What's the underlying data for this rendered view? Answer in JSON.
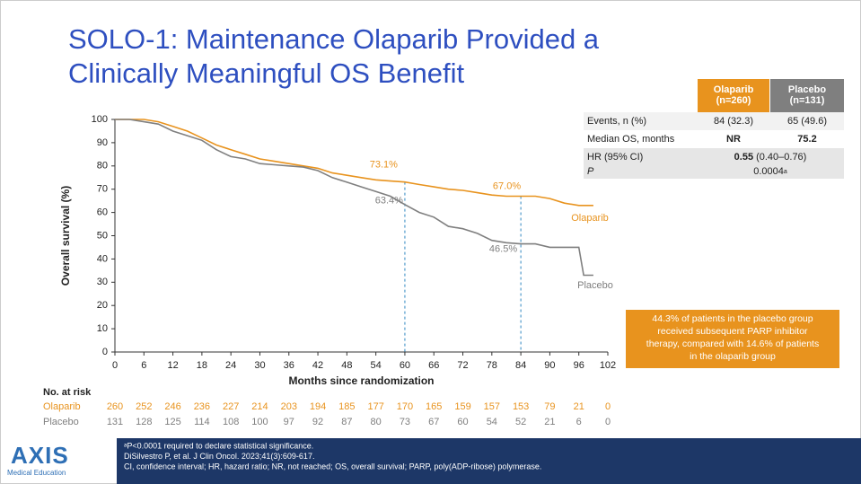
{
  "title_lines": [
    "SOLO-1: Maintenance Olaparib Provided a",
    "Clinically Meaningful OS Benefit"
  ],
  "chart_data": {
    "type": "line",
    "ylabel": "Overall survival (%)",
    "xlabel": "Months since randomization",
    "xlim": [
      0,
      102
    ],
    "xticks": [
      0,
      6,
      12,
      18,
      24,
      30,
      36,
      42,
      48,
      54,
      60,
      66,
      72,
      78,
      84,
      90,
      96,
      102
    ],
    "ylim": [
      0,
      100
    ],
    "yticks": [
      0,
      10,
      20,
      30,
      40,
      50,
      60,
      70,
      80,
      90,
      100
    ],
    "x": [
      0,
      3,
      6,
      9,
      12,
      15,
      18,
      21,
      24,
      27,
      30,
      33,
      36,
      39,
      42,
      45,
      48,
      51,
      54,
      57,
      60,
      63,
      66,
      69,
      72,
      75,
      78,
      81,
      84,
      87,
      90,
      93,
      96,
      97,
      99
    ],
    "series": [
      {
        "name": "Olaparib",
        "color": "#E8931E",
        "values": [
          100,
          100,
          100,
          99,
          97,
          95,
          92,
          89,
          87,
          85,
          83,
          82,
          81,
          80,
          79,
          77,
          76,
          75,
          74,
          73.5,
          73.1,
          72,
          71,
          70,
          69.5,
          68.5,
          67.5,
          67,
          67.0,
          67,
          66,
          64,
          63,
          63,
          63
        ]
      },
      {
        "name": "Placebo",
        "color": "#7F7F7F",
        "values": [
          100,
          100,
          99,
          98,
          95,
          93,
          91,
          87,
          84,
          83,
          81,
          80.5,
          80,
          79.5,
          78,
          75,
          73,
          71,
          69,
          67,
          63.4,
          60,
          58,
          54,
          53,
          51,
          48,
          47,
          46.5,
          46.5,
          45,
          45,
          45,
          33,
          33
        ]
      }
    ],
    "annotations": [
      {
        "label": "73.1%",
        "x": 60,
        "y": 73.1,
        "series": 0
      },
      {
        "label": "63.4%",
        "x": 60,
        "y": 63.4,
        "series": 1
      },
      {
        "label": "67.0%",
        "x": 84,
        "y": 67.0,
        "series": 0
      },
      {
        "label": "46.5%",
        "x": 84,
        "y": 46.5,
        "series": 1
      }
    ],
    "risk_table": {
      "title": "No. at risk",
      "rows": [
        {
          "name": "Olaparib",
          "values": [
            260,
            252,
            246,
            236,
            227,
            214,
            203,
            194,
            185,
            177,
            170,
            165,
            159,
            157,
            153,
            79,
            21,
            0
          ]
        },
        {
          "name": "Placebo",
          "values": [
            131,
            128,
            125,
            114,
            108,
            100,
            97,
            92,
            87,
            80,
            73,
            67,
            60,
            54,
            52,
            21,
            6,
            0
          ]
        }
      ]
    }
  },
  "stats_table": {
    "headers": [
      [
        "Olaparib",
        "(n=260)"
      ],
      [
        "Placebo",
        "(n=131)"
      ]
    ],
    "rows": [
      {
        "label": "Events, n (%)",
        "olaparib": "84 (32.3)",
        "placebo": "65 (49.6)"
      },
      {
        "label": "Median OS, months",
        "olaparib": "NR",
        "placebo": "75.2"
      }
    ],
    "hr": {
      "label": "HR (95% CI)",
      "value": "0.55",
      "ci": "(0.40–0.76)"
    },
    "p": {
      "label": "P",
      "value": "0.0004",
      "note": "a"
    }
  },
  "callout": [
    "44.3% of patients in the placebo group",
    "received subsequent PARP inhibitor",
    "therapy, compared with 14.6% of patients",
    "in the olaparib group"
  ],
  "footnotes": [
    "ᵃP<0.0001 required to declare statistical significance.",
    "DiSilvestro P, et al. J Clin Oncol. 2023;41(3):609-617.",
    "CI, confidence interval; HR, hazard ratio; NR, not reached; OS, overall survival; PARP, poly(ADP-ribose) polymerase."
  ],
  "logo": {
    "name": "AXIS",
    "subtitle": "Medical Education"
  }
}
